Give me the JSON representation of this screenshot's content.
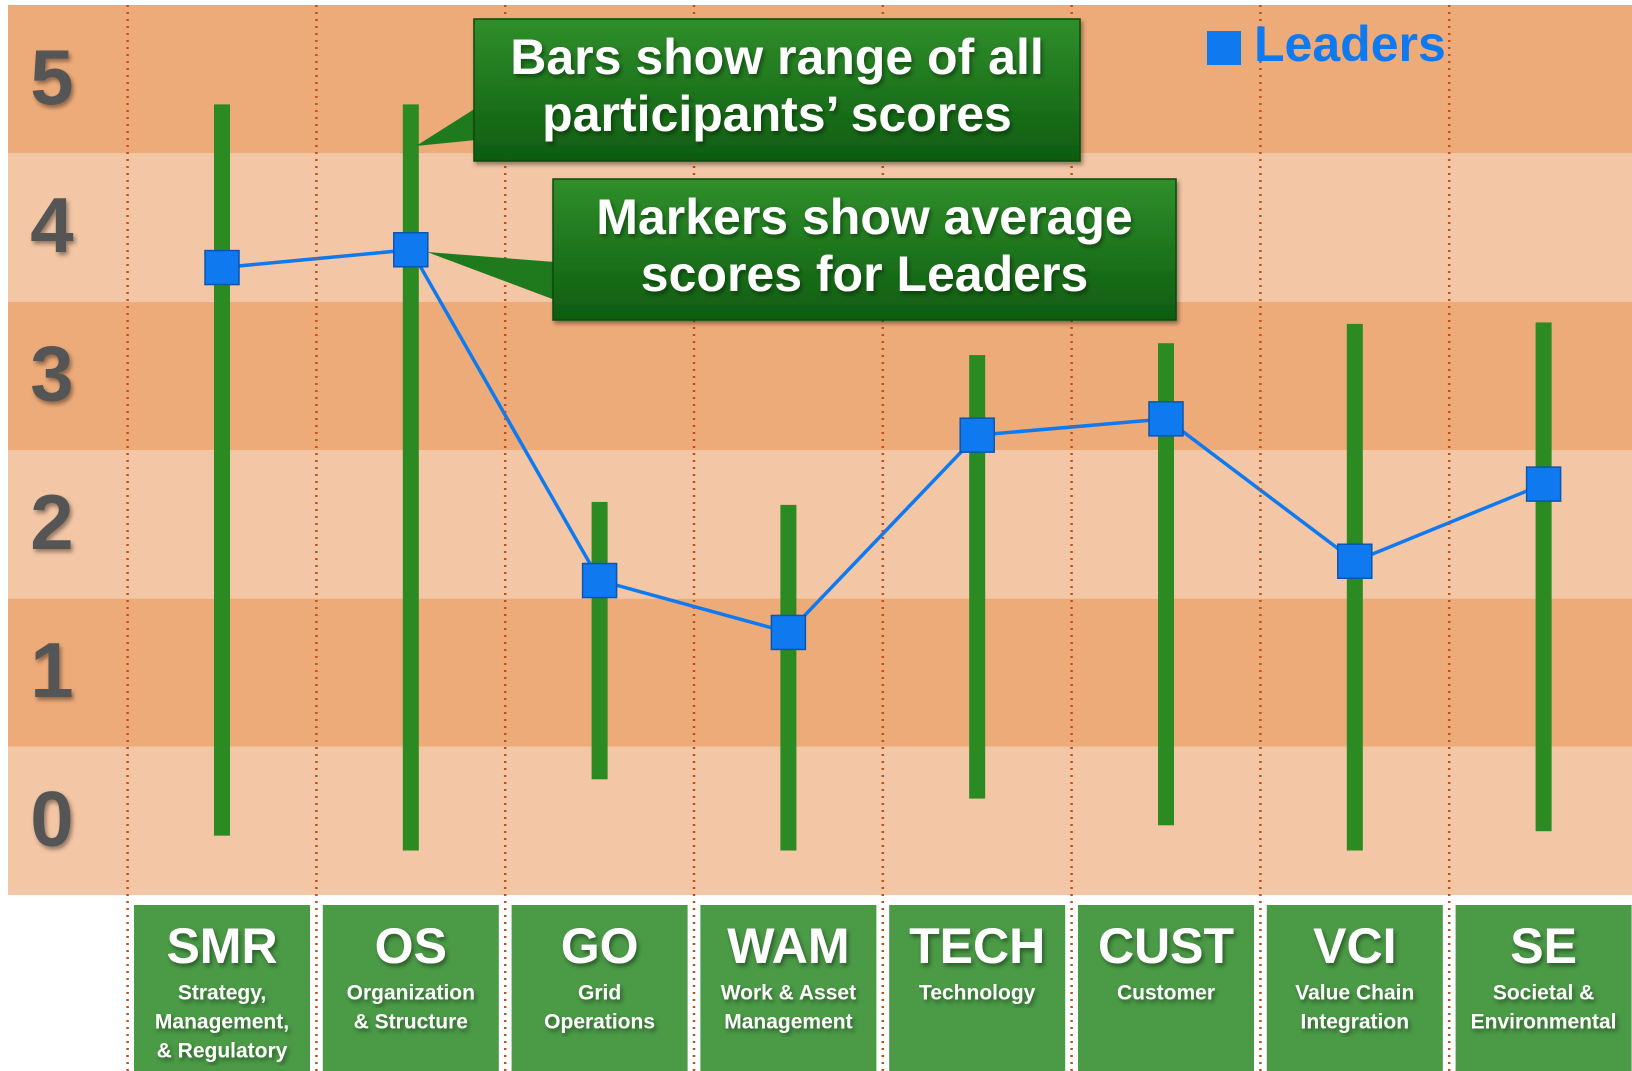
{
  "chart_data": {
    "type": "range",
    "categories": [
      "SMR",
      "OS",
      "GO",
      "WAM",
      "TECH",
      "CUST",
      "VCI",
      "SE"
    ],
    "descriptions": [
      [
        "Strategy,",
        "Management,",
        "& Regulatory"
      ],
      [
        "Organization",
        "& Structure"
      ],
      [
        "Grid",
        "Operations"
      ],
      [
        "Work & Asset",
        "Management"
      ],
      [
        "Technology"
      ],
      [
        "Customer"
      ],
      [
        "Value Chain",
        "Integration"
      ],
      [
        "Societal &",
        "Environmental"
      ]
    ],
    "ranges": {
      "color": "#2b8a22",
      "low": [
        -0.1,
        -0.2,
        0.28,
        -0.2,
        0.15,
        -0.03,
        -0.2,
        -0.07
      ],
      "high": [
        4.83,
        4.83,
        2.15,
        2.13,
        3.14,
        3.22,
        3.35,
        3.36
      ]
    },
    "series": [
      {
        "name": "Leaders",
        "color": "#0f7af0",
        "values": [
          3.73,
          3.85,
          1.62,
          1.27,
          2.6,
          2.71,
          1.75,
          2.27
        ]
      }
    ],
    "annotations": [
      {
        "lines": [
          "Bars show range of all",
          "participants’ scores"
        ]
      },
      {
        "lines": [
          "Markers show average",
          "scores for Leaders"
        ]
      }
    ],
    "ylim": [
      -0.5,
      5.5
    ],
    "yticks": [
      0,
      1,
      2,
      3,
      4,
      5
    ],
    "legend": "top-right"
  }
}
